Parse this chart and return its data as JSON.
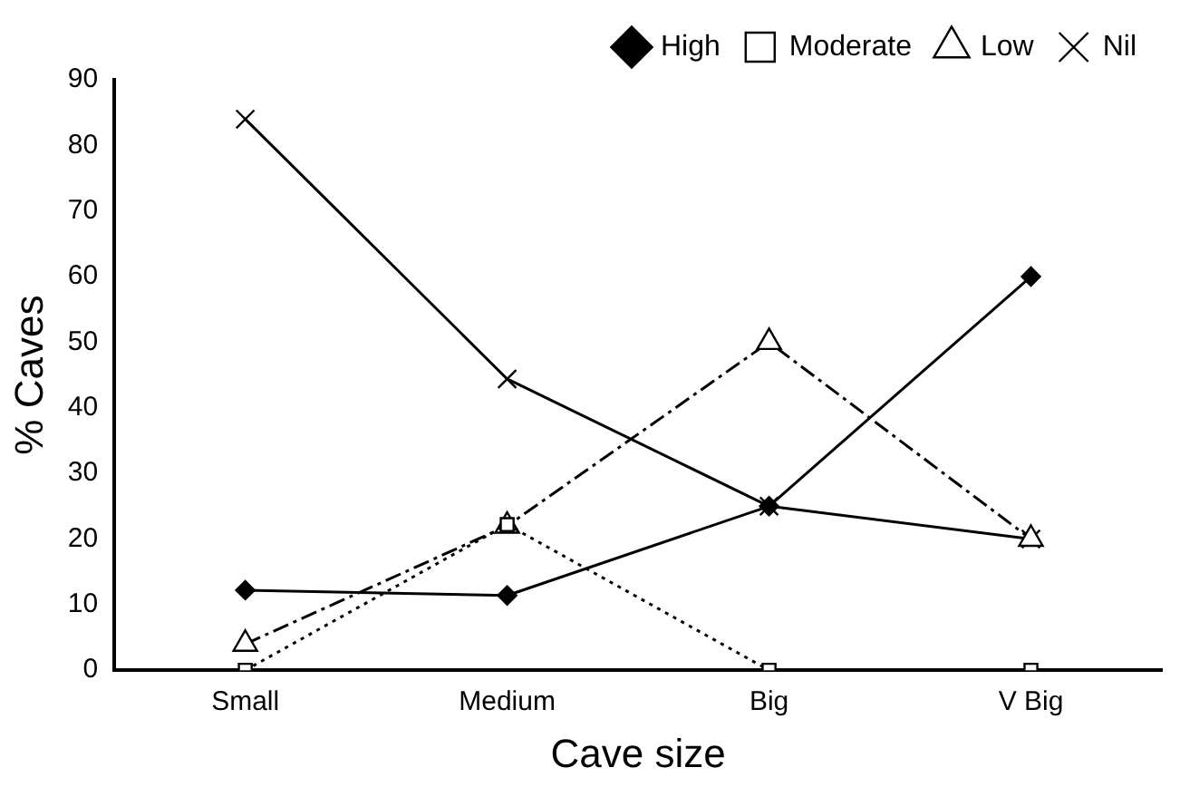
{
  "chart_data": {
    "type": "line",
    "xlabel": "Cave size",
    "ylabel": "% Caves",
    "categories": [
      "Small",
      "Medium",
      "Big",
      "V Big"
    ],
    "series": [
      {
        "name": "High",
        "color": "#000000",
        "values": [
          12.2,
          11.4,
          25,
          60
        ],
        "marker": "diamond",
        "line_style": "solid"
      },
      {
        "name": "Moderate",
        "color": "#000000",
        "values": [
          0,
          22.2,
          0,
          0
        ],
        "marker": "square",
        "line_style": "dotted"
      },
      {
        "name": "Low",
        "color": "#000000",
        "values": [
          4,
          22,
          50,
          20
        ],
        "marker": "triangle",
        "line_style": "dashed"
      },
      {
        "name": "Nil",
        "color": "#000000",
        "values": [
          84,
          44.4,
          25,
          20
        ],
        "marker": "cross",
        "line_style": "solid"
      }
    ],
    "ylim": [
      0,
      90
    ],
    "yticks": [
      0,
      10,
      20,
      30,
      40,
      50,
      60,
      70,
      80,
      90
    ],
    "grid": false,
    "legend": "top right"
  }
}
